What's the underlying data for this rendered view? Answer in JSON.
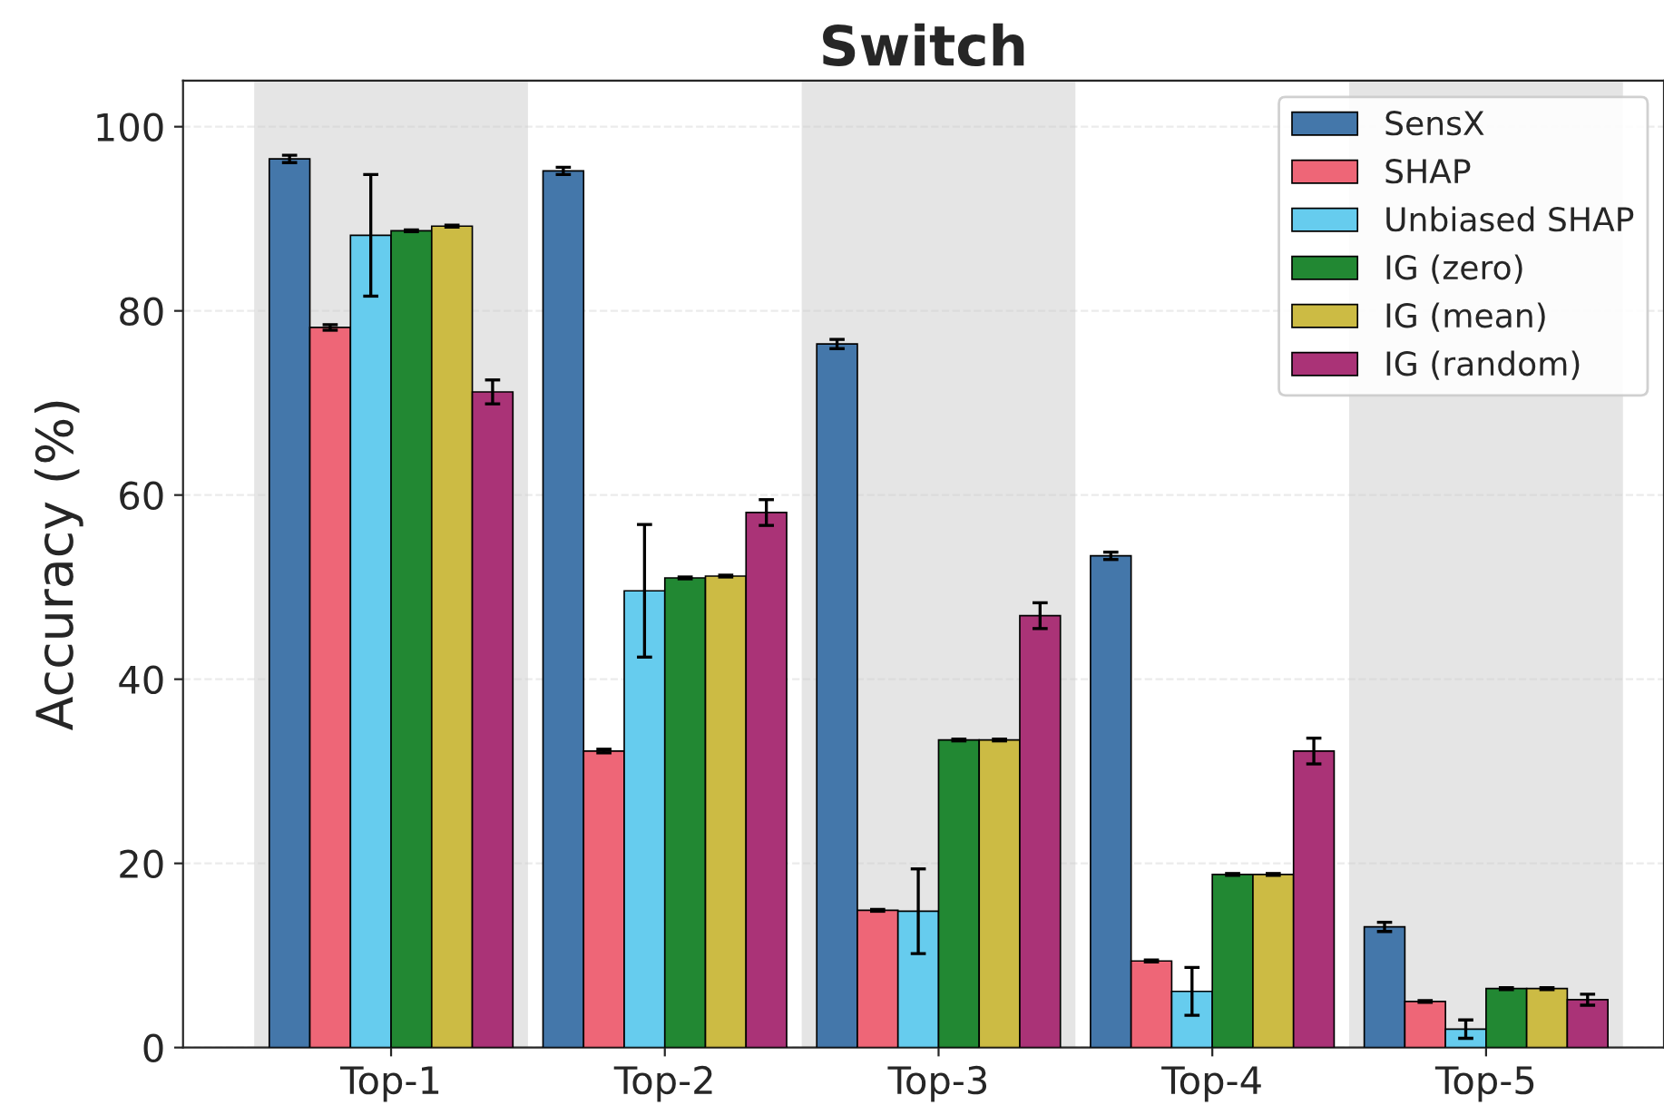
{
  "chart_data": {
    "type": "bar",
    "title": "Switch",
    "ylabel": "Accuracy (%)",
    "categories": [
      "Top-1",
      "Top-2",
      "Top-3",
      "Top-4",
      "Top-5"
    ],
    "series": [
      {
        "name": "SensX",
        "color": "#4477aa",
        "values": [
          96.5,
          95.2,
          76.4,
          53.4,
          13.1
        ],
        "errors": [
          0.4,
          0.4,
          0.5,
          0.4,
          0.5
        ]
      },
      {
        "name": "SHAP",
        "color": "#ee6677",
        "values": [
          78.2,
          32.2,
          14.9,
          9.4,
          5.0
        ],
        "errors": [
          0.3,
          0.2,
          0.1,
          0.1,
          0.1
        ]
      },
      {
        "name": "Unbiased SHAP",
        "color": "#66ccee",
        "values": [
          88.2,
          49.6,
          14.8,
          6.1,
          2.0
        ],
        "errors": [
          6.6,
          7.2,
          4.6,
          2.6,
          1.0
        ]
      },
      {
        "name": "IG (zero)",
        "color": "#228833",
        "values": [
          88.7,
          51.0,
          33.4,
          18.8,
          6.4
        ],
        "errors": [
          0.1,
          0.1,
          0.1,
          0.1,
          0.1
        ]
      },
      {
        "name": "IG (mean)",
        "color": "#ccbb44",
        "values": [
          89.2,
          51.2,
          33.4,
          18.8,
          6.4
        ],
        "errors": [
          0.1,
          0.1,
          0.1,
          0.1,
          0.1
        ]
      },
      {
        "name": "IG (random)",
        "color": "#aa3377",
        "values": [
          71.2,
          58.1,
          46.9,
          32.2,
          5.2
        ],
        "errors": [
          1.3,
          1.4,
          1.4,
          1.4,
          0.6
        ]
      }
    ],
    "ylim": [
      0,
      105
    ],
    "yticks": [
      0,
      20,
      40,
      60,
      80,
      100
    ],
    "bands": [
      {
        "axis": "x",
        "from": "Top-1",
        "to": "Top-1",
        "color": "#e5e5e5"
      },
      {
        "axis": "x",
        "from": "Top-3",
        "to": "Top-3",
        "color": "#e5e5e5"
      },
      {
        "axis": "x",
        "from": "Top-5",
        "to": "Top-5",
        "color": "#e5e5e5"
      }
    ],
    "grid": "y",
    "legend": "top right"
  }
}
